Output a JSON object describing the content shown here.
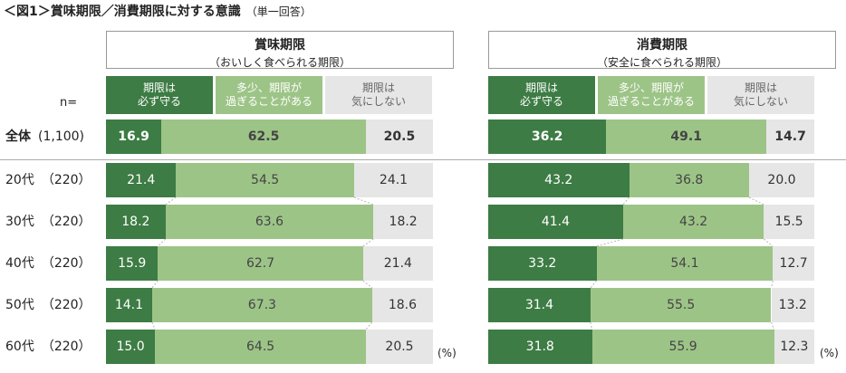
{
  "title": "＜図1＞賞味期限／消費期限に対する意識",
  "title_note": "（単一回答）",
  "n_label": "n=",
  "unit": "(%)",
  "colors": {
    "c0": "#3d7c44",
    "c1": "#9dc487",
    "c2": "#e6e6e6"
  },
  "chart_data": [
    {
      "type": "bar",
      "orientation": "horizontal",
      "stacked": "100%",
      "title": "賞味期限",
      "subtitle": "（おいしく食べられる期限）",
      "legend": [
        "期限は\n必ず守る",
        "多少、期限が\n過ぎることがある",
        "期限は\n気にしない"
      ],
      "categories": [
        "全体 (1,100)",
        "20代 （220）",
        "30代 （220）",
        "40代 （220）",
        "50代 （220）",
        "60代 （220）"
      ],
      "series": [
        {
          "name": "期限は必ず守る",
          "values": [
            16.9,
            21.4,
            18.2,
            15.9,
            14.1,
            15.0
          ],
          "labels": [
            "16.9",
            "21.4",
            "18.2",
            "15.9",
            "14.1",
            "15.0"
          ]
        },
        {
          "name": "多少、期限が過ぎることがある",
          "values": [
            62.5,
            54.5,
            63.6,
            62.7,
            67.3,
            64.5
          ],
          "labels": [
            "62.5",
            "54.5",
            "63.6",
            "62.7",
            "67.3",
            "64.5"
          ]
        },
        {
          "name": "期限は気にしない",
          "values": [
            20.5,
            24.1,
            18.2,
            21.4,
            18.6,
            20.5
          ],
          "labels": [
            "20.5",
            "24.1",
            "18.2",
            "21.4",
            "18.6",
            "20.5"
          ]
        }
      ]
    },
    {
      "type": "bar",
      "orientation": "horizontal",
      "stacked": "100%",
      "title": "消費期限",
      "subtitle": "（安全に食べられる期限）",
      "legend": [
        "期限は\n必ず守る",
        "多少、期限が\n過ぎることがある",
        "期限は\n気にしない"
      ],
      "categories": [
        "全体 (1,100)",
        "20代 （220）",
        "30代 （220）",
        "40代 （220）",
        "50代 （220）",
        "60代 （220）"
      ],
      "series": [
        {
          "name": "期限は必ず守る",
          "values": [
            36.2,
            43.2,
            41.4,
            33.2,
            31.4,
            31.8
          ],
          "labels": [
            "36.2",
            "43.2",
            "41.4",
            "33.2",
            "31.4",
            "31.8"
          ]
        },
        {
          "name": "多少、期限が過ぎることがある",
          "values": [
            49.1,
            36.8,
            43.2,
            54.1,
            55.5,
            55.9
          ],
          "labels": [
            "49.1",
            "36.8",
            "43.2",
            "54.1",
            "55.5",
            "55.9"
          ]
        },
        {
          "name": "期限は気にしない",
          "values": [
            14.7,
            20.0,
            15.5,
            12.7,
            13.2,
            12.3
          ],
          "labels": [
            "14.7",
            "20.0",
            "15.5",
            "12.7",
            "13.2",
            "12.3"
          ]
        }
      ]
    }
  ],
  "rows": [
    {
      "group": "全体",
      "n": "(1,100)"
    },
    {
      "group": "20代",
      "n": "（220）"
    },
    {
      "group": "30代",
      "n": "（220）"
    },
    {
      "group": "40代",
      "n": "（220）"
    },
    {
      "group": "50代",
      "n": "（220）"
    },
    {
      "group": "60代",
      "n": "（220）"
    }
  ]
}
